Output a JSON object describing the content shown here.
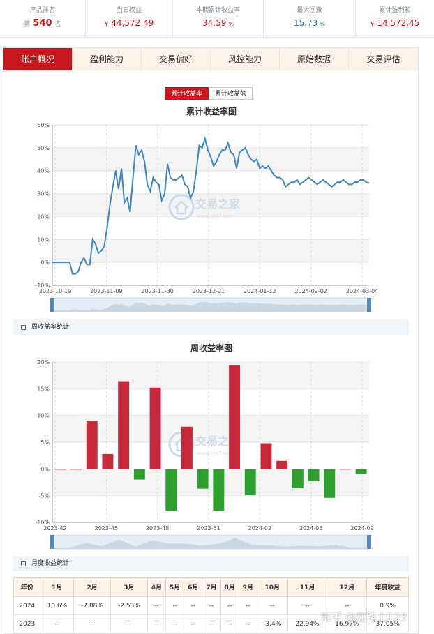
{
  "stats": [
    {
      "label": "产品排名",
      "prefix": "第",
      "value": "540",
      "suffix": "名",
      "kind": "rank"
    },
    {
      "label": "当日权益",
      "prefix": "¥",
      "value": "44,572.49",
      "suffix": "",
      "kind": "red"
    },
    {
      "label": "本期累计收益率",
      "prefix": "",
      "value": "34.59",
      "suffix": "%",
      "kind": "red"
    },
    {
      "label": "最大回撤",
      "prefix": "",
      "value": "15.73",
      "suffix": "%",
      "kind": "blue"
    },
    {
      "label": "累计盈利额",
      "prefix": "¥",
      "value": "14,572.45",
      "suffix": "",
      "kind": "red"
    }
  ],
  "tabs": [
    "账户概况",
    "盈利能力",
    "交易偏好",
    "风控能力",
    "原始数据",
    "交易评估"
  ],
  "active_tab": 0,
  "toggle": [
    "累计收益率",
    "累计收益额"
  ],
  "section1": "周收益率统计",
  "section2": "月度收益统计",
  "chart_logo_text": "交易之家",
  "chart_logo_url": "www.ejia7.com",
  "colors": {
    "accent": "#c8161d",
    "line": "#3a87c9",
    "pos_bar": "#c8293a",
    "neg_bar": "#2ea02e"
  },
  "chart_data": [
    {
      "type": "line",
      "title": "累计收益率图",
      "ylim": [
        -10,
        60
      ],
      "yticks": [
        "-10%",
        "0%",
        "10%",
        "20%",
        "30%",
        "40%",
        "50%",
        "60%"
      ],
      "xticks": [
        "2023-10-19",
        "2023-11-09",
        "2023-11-30",
        "2023-12-21",
        "2024-01-12",
        "2024-02-02",
        "2024-03-04"
      ],
      "x": [
        0,
        1,
        2,
        3,
        4,
        5,
        6,
        7,
        8,
        9,
        10,
        11,
        12,
        13,
        14,
        15,
        16,
        17,
        18,
        19,
        20,
        21,
        22,
        23,
        24,
        25,
        26,
        27,
        28,
        29,
        30,
        31,
        32,
        33,
        34,
        35,
        36,
        37,
        38,
        39,
        40,
        41,
        42,
        43,
        44,
        45,
        46,
        47,
        48,
        49,
        50,
        51,
        52,
        53,
        54,
        55,
        56,
        57,
        58,
        59,
        60,
        61,
        62,
        63,
        64,
        65,
        66,
        67,
        68,
        69,
        70,
        71,
        72,
        73,
        74,
        75,
        76,
        77,
        78,
        79,
        80,
        81,
        82,
        83,
        84,
        85,
        86,
        87,
        88,
        89,
        90,
        91,
        92,
        93,
        94,
        95,
        96,
        97,
        98,
        99,
        100,
        101,
        102,
        103,
        104,
        105,
        106,
        107,
        108,
        109,
        110
      ],
      "values": [
        0,
        0,
        0,
        0,
        0,
        0,
        0,
        -5,
        -5,
        -4,
        0,
        2,
        -1,
        -1,
        10,
        8,
        4,
        5,
        7,
        15,
        25,
        33,
        40,
        32,
        41,
        26,
        28,
        22,
        37,
        51,
        47,
        49,
        44,
        34,
        31,
        37,
        35,
        34,
        27,
        30,
        43,
        37,
        36,
        36,
        37,
        38,
        34,
        33,
        28,
        31,
        40,
        51,
        50,
        54,
        49,
        46,
        42,
        44,
        47,
        49,
        49,
        52,
        48,
        47,
        41,
        48,
        49,
        50,
        47,
        45,
        44,
        45,
        41,
        42,
        41,
        42,
        40,
        38,
        37,
        37,
        36,
        33,
        34,
        35,
        35,
        36,
        34,
        35,
        36,
        37,
        36,
        35,
        34,
        35,
        36,
        35,
        34,
        33,
        34,
        35,
        35,
        36,
        35,
        34,
        34,
        35,
        35,
        36,
        36,
        35,
        34.59
      ]
    },
    {
      "type": "bar",
      "title": "周收益率图",
      "ylim": [
        -10,
        20
      ],
      "yticks": [
        "-10%",
        "-5%",
        "0%",
        "5%",
        "10%",
        "15%",
        "20%"
      ],
      "xticks": [
        "2023-42",
        "2023-45",
        "2023-48",
        "2023-51",
        "2024-02",
        "2024-05",
        "2024-09"
      ],
      "values": [
        0,
        0,
        9.0,
        2.8,
        16.4,
        -2.0,
        15.2,
        -7.8,
        7.9,
        -3.7,
        -7.8,
        19.4,
        -4.9,
        4.8,
        1.5,
        -3.6,
        -2.3,
        -5.4,
        0,
        -1.0
      ]
    }
  ],
  "monthly": {
    "headers": [
      "年份",
      "1月",
      "2月",
      "3月",
      "4月",
      "5月",
      "6月",
      "7月",
      "8月",
      "9月",
      "10月",
      "11月",
      "12月",
      "年度收益"
    ],
    "rows": [
      [
        "2024",
        "10.6%",
        "-7.08%",
        "-2.53%",
        "--",
        "--",
        "--",
        "--",
        "--",
        "--",
        "--",
        "--",
        "--",
        "0.9%"
      ],
      [
        "2023",
        "--",
        "--",
        "--",
        "--",
        "--",
        "--",
        "--",
        "--",
        "--",
        "-3.4%",
        "22.94%",
        "16.97%",
        "37.05%"
      ]
    ]
  },
  "watermark": "知乎 @在路上123"
}
